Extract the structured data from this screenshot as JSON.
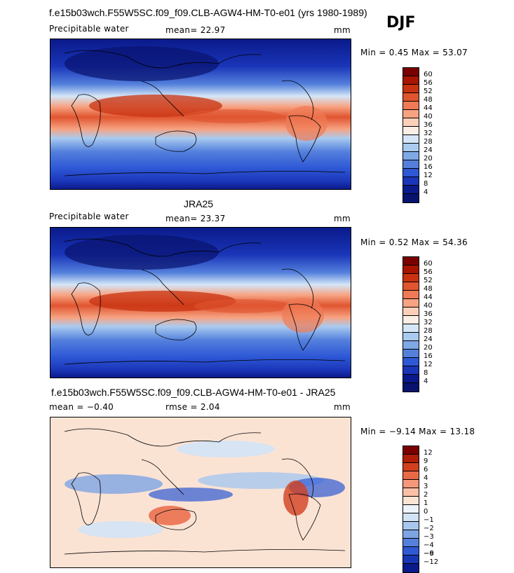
{
  "header": {
    "title": "f.e15b03wch.F55W5SC.f09_f09.CLB-AGW4-HM-T0-e01 (yrs 1980-1989)",
    "season": "DJF"
  },
  "panels": [
    {
      "label": "",
      "variable": "Precipitable water",
      "stats_left": "mean=  22.97",
      "units": "mm",
      "minmax": "Min =    0.45  Max =  53.07",
      "colorbar": [
        "60",
        "56",
        "52",
        "48",
        "44",
        "40",
        "36",
        "32",
        "28",
        "24",
        "20",
        "16",
        "12",
        "8",
        "4"
      ]
    },
    {
      "label": "JRA25",
      "variable": "Precipitable water",
      "stats_left": "mean=  23.37",
      "units": "mm",
      "minmax": "Min =    0.52  Max =  54.36",
      "colorbar": [
        "60",
        "56",
        "52",
        "48",
        "44",
        "40",
        "36",
        "32",
        "28",
        "24",
        "20",
        "16",
        "12",
        "8",
        "4"
      ]
    },
    {
      "label": "f.e15b03wch.F55W5SC.f09_f09.CLB-AGW4-HM-T0-e01 - JRA25",
      "stats_left": "mean =   −0.40",
      "stats_mid": "rmse =    2.04",
      "units": "mm",
      "minmax": "Min =   −9.14  Max =  13.18",
      "colorbar": [
        "12",
        "9",
        "6",
        "4",
        "3",
        "2",
        "1",
        "0",
        "−1",
        "−2",
        "−3",
        "−4",
        "−6",
        "−9",
        "−12"
      ]
    }
  ],
  "colors": {
    "abs_scale": [
      "#7a0000",
      "#a81400",
      "#c83210",
      "#e05530",
      "#f07a55",
      "#f7a382",
      "#fcd0b8",
      "#fbeee6",
      "#d4e6f7",
      "#a9cbf0",
      "#7fa8e6",
      "#5480dc",
      "#2e58d6",
      "#1a35b8",
      "#0a1a8a",
      "#08136e"
    ],
    "diff_scale": [
      "#7a0000",
      "#b01e08",
      "#d24020",
      "#ea6a48",
      "#f5987a",
      "#fac0a6",
      "#fde3d4",
      "#eef3fb",
      "#d2e3f6",
      "#a8c7ee",
      "#7ea4e4",
      "#5580dc",
      "#2f5ad4",
      "#1836b4",
      "#0a1a8a"
    ]
  }
}
